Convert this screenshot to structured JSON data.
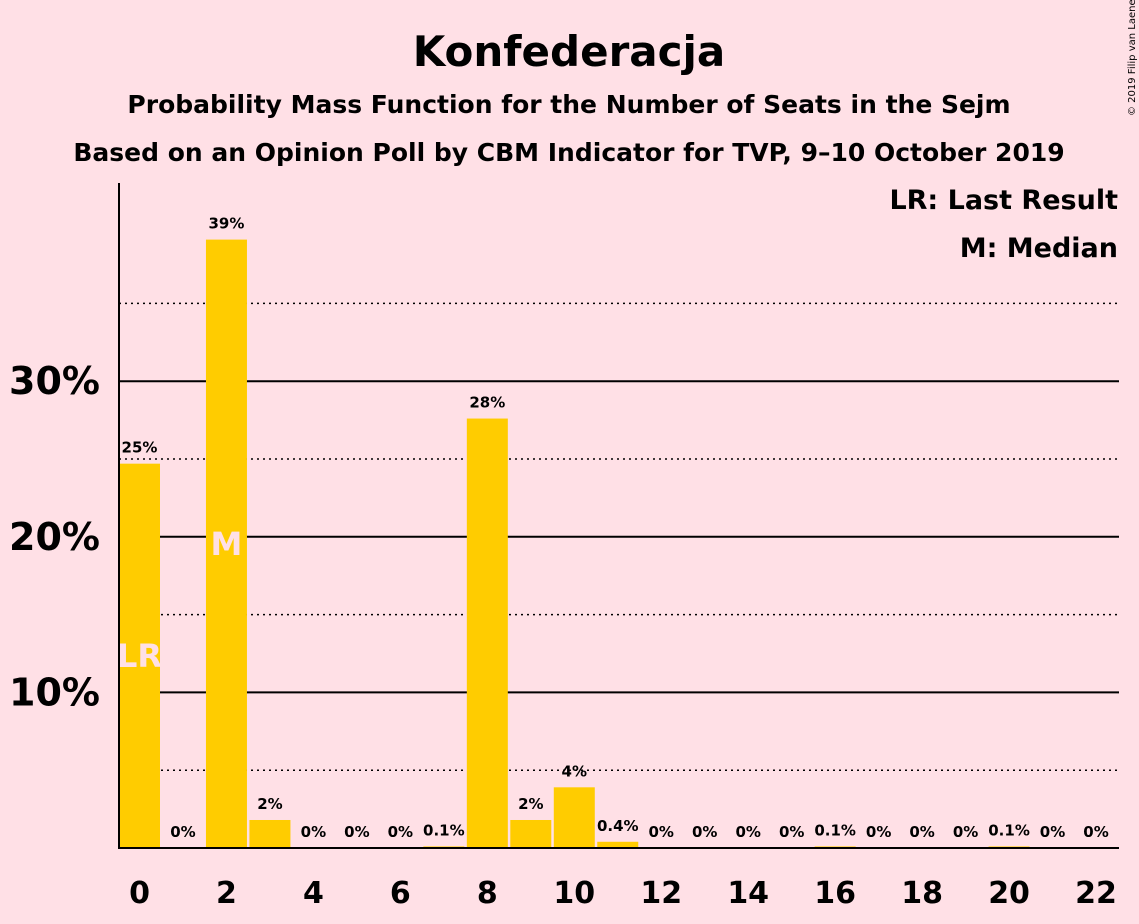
{
  "chart_data": {
    "type": "bar",
    "title": "Konfederacja",
    "subtitle": "Probability Mass Function for the Number of Seats in the Sejm",
    "subtitle2": "Based on an Opinion Poll by CBM Indicator for TVP, 9–10 October 2019",
    "copyright": "© 2019 Filip van Laenen",
    "legend": [
      "LR: Last Result",
      "M: Median"
    ],
    "legend_position": "top-right",
    "xlabel": "",
    "ylabel": "",
    "ylim": [
      0,
      42
    ],
    "grid": true,
    "major_gridlines": [
      10,
      20,
      30
    ],
    "minor_gridlines": [
      5,
      15,
      25,
      35
    ],
    "yticks": [
      {
        "value": 10,
        "label": "10%"
      },
      {
        "value": 20,
        "label": "20%"
      },
      {
        "value": 30,
        "label": "30%"
      }
    ],
    "xticks": [
      0,
      2,
      4,
      6,
      8,
      10,
      12,
      14,
      16,
      18,
      20,
      22
    ],
    "bar_color": "#ffcc00",
    "seats": [
      0,
      1,
      2,
      3,
      4,
      5,
      6,
      7,
      8,
      9,
      10,
      11,
      12,
      13,
      14,
      15,
      16,
      17,
      18,
      19,
      20,
      21,
      22
    ],
    "values": [
      24.7,
      0,
      39.1,
      1.8,
      0,
      0,
      0,
      0.1,
      27.6,
      1.8,
      3.9,
      0.4,
      0,
      0,
      0,
      0,
      0.1,
      0,
      0,
      0,
      0.1,
      0,
      0
    ],
    "labels": [
      "25%",
      "0%",
      "39%",
      "2%",
      "0%",
      "0%",
      "0%",
      "0.1%",
      "28%",
      "2%",
      "4%",
      "0.4%",
      "0%",
      "0%",
      "0%",
      "0%",
      "0.1%",
      "0%",
      "0%",
      "0%",
      "0.1%",
      "0%",
      "0%"
    ],
    "markers": [
      {
        "seat": 0,
        "text": "LR"
      },
      {
        "seat": 2,
        "text": "M"
      }
    ]
  }
}
